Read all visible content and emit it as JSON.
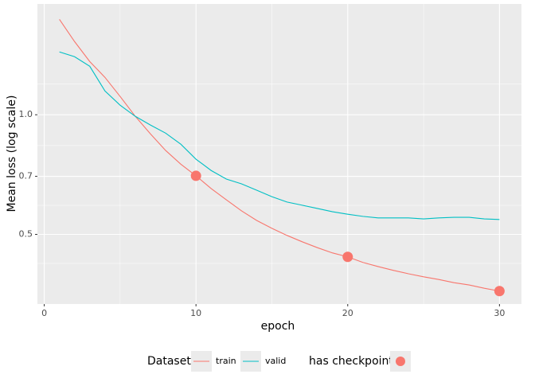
{
  "chart_data": {
    "type": "line",
    "x_label": "epoch",
    "y_label": "Mean loss (log scale)",
    "x": [
      1,
      2,
      3,
      4,
      5,
      6,
      7,
      8,
      9,
      10,
      11,
      12,
      13,
      14,
      15,
      16,
      17,
      18,
      19,
      20,
      21,
      22,
      23,
      24,
      25,
      26,
      27,
      28,
      29,
      30
    ],
    "series": [
      {
        "name": "train",
        "color": "#F8766D",
        "values": [
          1.738,
          1.528,
          1.361,
          1.242,
          1.112,
          0.991,
          0.895,
          0.813,
          0.751,
          0.702,
          0.652,
          0.611,
          0.573,
          0.542,
          0.518,
          0.497,
          0.479,
          0.463,
          0.449,
          0.439,
          0.425,
          0.415,
          0.406,
          0.398,
          0.391,
          0.385,
          0.378,
          0.373,
          0.366,
          0.36
        ]
      },
      {
        "name": "valid",
        "color": "#00BFC4",
        "values": [
          1.439,
          1.4,
          1.324,
          1.148,
          1.057,
          0.991,
          0.942,
          0.899,
          0.843,
          0.773,
          0.724,
          0.689,
          0.67,
          0.646,
          0.622,
          0.603,
          0.592,
          0.581,
          0.57,
          0.562,
          0.555,
          0.55,
          0.55,
          0.55,
          0.547,
          0.55,
          0.552,
          0.552,
          0.547,
          0.545
        ]
      }
    ],
    "checkpoints": {
      "color": "#F8766D",
      "x": [
        10,
        20,
        30
      ],
      "values": [
        0.702,
        0.439,
        0.36
      ]
    },
    "legend_title": "Dataset",
    "checkpoint_legend_title": "has checkpoint",
    "legend_position": "bottom",
    "xlim": [
      -0.45,
      31.45
    ],
    "xticks": [
      0,
      10,
      20,
      30
    ],
    "ylim": [
      0.334,
      1.9
    ],
    "yticks": [
      0.5,
      0.7,
      {
        "value": 1,
        "label": "1.0"
      }
    ],
    "log_y": true,
    "grid": true,
    "minor_grid": true
  }
}
